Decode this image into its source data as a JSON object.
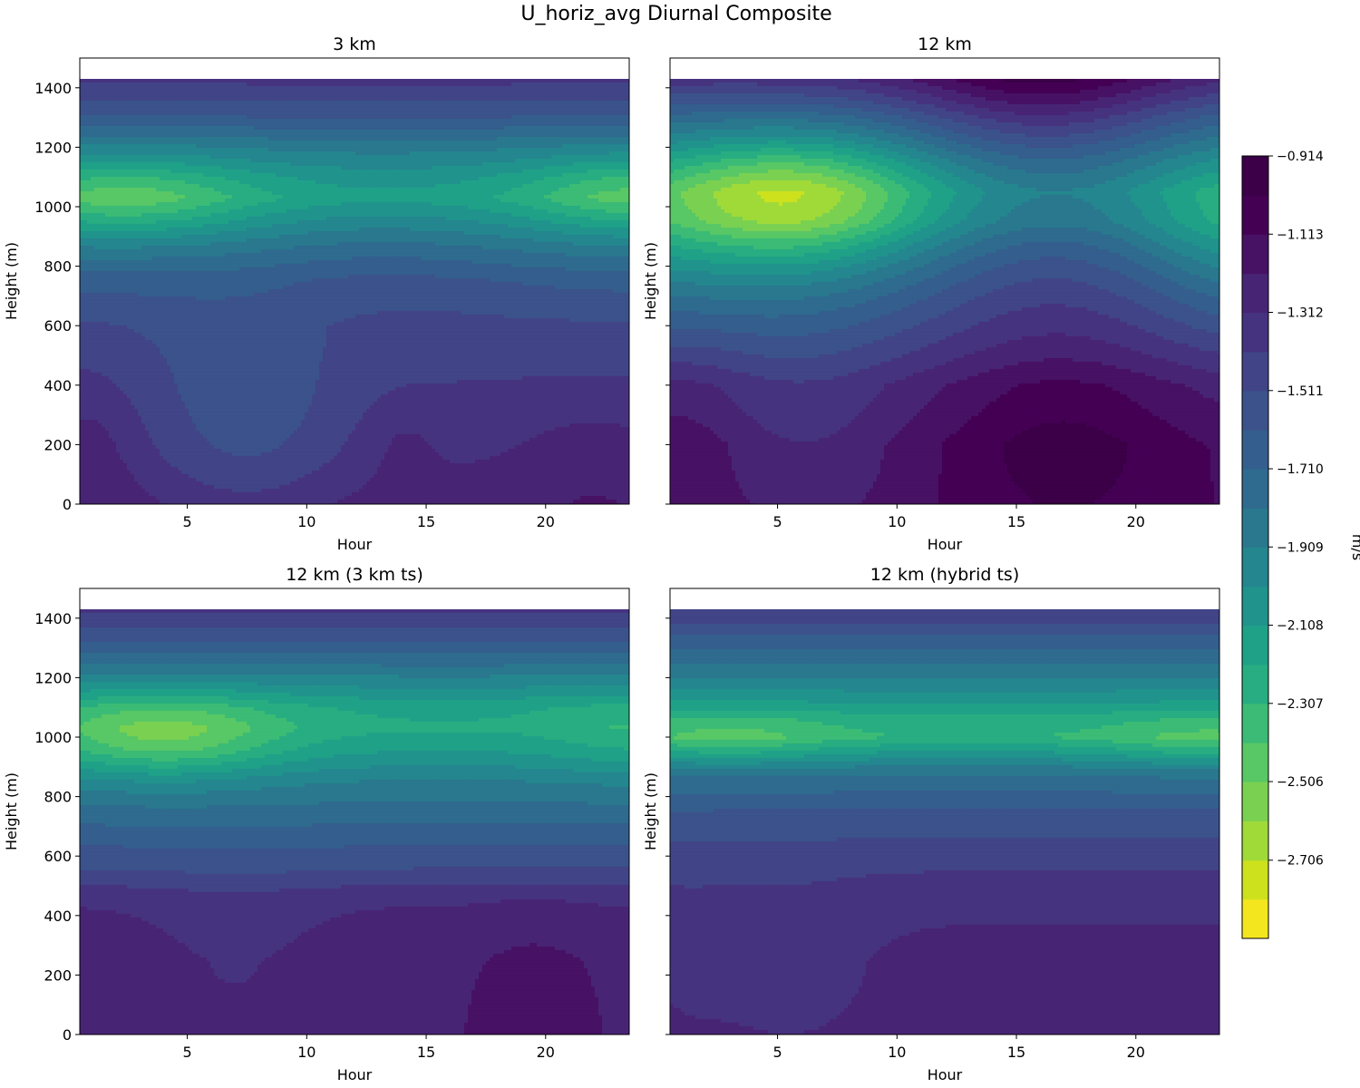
{
  "title": "U_horiz_avg Diurnal Composite",
  "colorbar": {
    "label": "m/s",
    "tick_labels": [
      "−0.914",
      "−1.113",
      "−1.312",
      "−1.511",
      "−1.710",
      "−1.909",
      "−2.108",
      "−2.307",
      "−2.506",
      "−2.706"
    ],
    "levels": [
      -2.905,
      -2.805,
      -2.706,
      -2.606,
      -2.506,
      -2.407,
      -2.307,
      -2.208,
      -2.108,
      -2.009,
      -1.909,
      -1.81,
      -1.71,
      -1.611,
      -1.511,
      -1.412,
      -1.312,
      -1.213,
      -1.113,
      -1.014,
      -0.914
    ],
    "colors": [
      "#f4e61e",
      "#cde11d",
      "#a0da39",
      "#7ad151",
      "#58c765",
      "#3bbb75",
      "#27ad81",
      "#1fa188",
      "#20938c",
      "#24868e",
      "#29788e",
      "#2e6b8e",
      "#345e8d",
      "#3b528b",
      "#414487",
      "#46337f",
      "#482475",
      "#471164",
      "#440154",
      "#3b0047"
    ]
  },
  "chart_data": [
    {
      "type": "contourf",
      "title": "3 km",
      "xlabel": "Hour",
      "ylabel": "Height (m)",
      "xlim": [
        0.5,
        23.5
      ],
      "ylim": [
        0,
        1500
      ],
      "xticks": [
        5,
        10,
        15,
        20
      ],
      "yticks": [
        0,
        200,
        400,
        600,
        800,
        1000,
        1200,
        1400
      ],
      "data_ymax": 1430,
      "field": {
        "base": [
          [
            0,
            -1.25
          ],
          [
            150,
            -1.32
          ],
          [
            300,
            -1.37
          ],
          [
            450,
            -1.43
          ],
          [
            600,
            -1.5
          ],
          [
            750,
            -1.65
          ],
          [
            850,
            -1.84
          ],
          [
            950,
            -2.06
          ],
          [
            1030,
            -2.22
          ],
          [
            1100,
            -2.12
          ],
          [
            1200,
            -1.9
          ],
          [
            1300,
            -1.62
          ],
          [
            1430,
            -1.38
          ]
        ],
        "bumps": [
          {
            "x": 2.5,
            "y": 1030,
            "sx": 3.5,
            "sy": 90,
            "a": -0.26
          },
          {
            "x": 23.5,
            "y": 1040,
            "sx": 3.0,
            "sy": 90,
            "a": -0.24
          },
          {
            "x": 7.5,
            "y": 250,
            "sx": 3.0,
            "sy": 250,
            "a": -0.2
          },
          {
            "x": 1.0,
            "y": 200,
            "sx": 1.3,
            "sy": 180,
            "a": 0.08
          },
          {
            "x": 22.0,
            "y": 150,
            "sx": 2.2,
            "sy": 150,
            "a": 0.07
          },
          {
            "x": 14.0,
            "y": 200,
            "sx": 1.0,
            "sy": 100,
            "a": 0.06
          },
          {
            "x": 13.0,
            "y": 900,
            "sx": 4.5,
            "sy": 200,
            "a": 0.1
          }
        ]
      }
    },
    {
      "type": "contourf",
      "title": "12 km",
      "xlabel": "Hour",
      "ylabel": "Height (m)",
      "xlim": [
        0.5,
        23.5
      ],
      "ylim": [
        0,
        1500
      ],
      "xticks": [
        5,
        10,
        15,
        20
      ],
      "yticks": [
        0,
        200,
        400,
        600,
        800,
        1000,
        1200,
        1400
      ],
      "data_ymax": 1430,
      "field": {
        "base": [
          [
            0,
            -1.14
          ],
          [
            200,
            -1.16
          ],
          [
            400,
            -1.3
          ],
          [
            550,
            -1.55
          ],
          [
            700,
            -1.8
          ],
          [
            850,
            -2.05
          ],
          [
            950,
            -2.22
          ],
          [
            1050,
            -2.25
          ],
          [
            1150,
            -2.05
          ],
          [
            1300,
            -1.7
          ],
          [
            1430,
            -1.35
          ]
        ],
        "bumps": [
          {
            "x": 5.5,
            "y": 1030,
            "sx": 4.0,
            "sy": 150,
            "a": -0.5
          },
          {
            "x": 23.5,
            "y": 950,
            "sx": 2.5,
            "sy": 180,
            "a": -0.15
          },
          {
            "x": 16.5,
            "y": 850,
            "sx": 5.0,
            "sy": 250,
            "a": 0.4
          },
          {
            "x": 16.0,
            "y": 1430,
            "sx": 4.0,
            "sy": 200,
            "a": 0.35
          },
          {
            "x": 17.0,
            "y": 200,
            "sx": 3.5,
            "sy": 250,
            "a": 0.18
          },
          {
            "x": 6.0,
            "y": 200,
            "sx": 3.0,
            "sy": 250,
            "a": -0.15
          },
          {
            "x": 1.5,
            "y": 250,
            "sx": 1.8,
            "sy": 250,
            "a": 0.05
          }
        ]
      }
    },
    {
      "type": "contourf",
      "title": "12 km (3 km ts)",
      "xlabel": "Hour",
      "ylabel": "Height (m)",
      "xlim": [
        0.5,
        23.5
      ],
      "ylim": [
        0,
        1500
      ],
      "xticks": [
        5,
        10,
        15,
        20
      ],
      "yticks": [
        0,
        200,
        400,
        600,
        800,
        1000,
        1200,
        1400
      ],
      "data_ymax": 1430,
      "field": {
        "base": [
          [
            0,
            -1.22
          ],
          [
            250,
            -1.24
          ],
          [
            450,
            -1.32
          ],
          [
            550,
            -1.5
          ],
          [
            700,
            -1.7
          ],
          [
            850,
            -1.9
          ],
          [
            950,
            -2.1
          ],
          [
            1030,
            -2.22
          ],
          [
            1100,
            -2.18
          ],
          [
            1200,
            -1.92
          ],
          [
            1300,
            -1.65
          ],
          [
            1430,
            -1.38
          ]
        ],
        "bumps": [
          {
            "x": 4.0,
            "y": 1000,
            "sx": 3.5,
            "sy": 100,
            "a": -0.35
          },
          {
            "x": 23.5,
            "y": 1000,
            "sx": 2.5,
            "sy": 100,
            "a": -0.1
          },
          {
            "x": 7.0,
            "y": 220,
            "sx": 2.5,
            "sy": 220,
            "a": -0.08
          },
          {
            "x": 19.5,
            "y": 150,
            "sx": 1.5,
            "sy": 150,
            "a": 0.08
          }
        ]
      }
    },
    {
      "type": "contourf",
      "title": "12 km (hybrid ts)",
      "xlabel": "Hour",
      "ylabel": "Height (m)",
      "xlim": [
        0.5,
        23.5
      ],
      "ylim": [
        0,
        1500
      ],
      "xticks": [
        5,
        10,
        15,
        20
      ],
      "yticks": [
        0,
        200,
        400,
        600,
        800,
        1000,
        1200,
        1400
      ],
      "data_ymax": 1430,
      "field": {
        "base": [
          [
            0,
            -1.25
          ],
          [
            250,
            -1.27
          ],
          [
            450,
            -1.34
          ],
          [
            600,
            -1.45
          ],
          [
            750,
            -1.6
          ],
          [
            880,
            -1.82
          ],
          [
            950,
            -2.1
          ],
          [
            1000,
            -2.3
          ],
          [
            1060,
            -2.25
          ],
          [
            1150,
            -2.02
          ],
          [
            1300,
            -1.7
          ],
          [
            1430,
            -1.4
          ]
        ],
        "bumps": [
          {
            "x": 3.0,
            "y": 990,
            "sx": 3.0,
            "sy": 60,
            "a": -0.16
          },
          {
            "x": 23.0,
            "y": 980,
            "sx": 3.0,
            "sy": 60,
            "a": -0.16
          },
          {
            "x": 5.5,
            "y": 200,
            "sx": 2.5,
            "sy": 200,
            "a": -0.1
          },
          {
            "x": 1.0,
            "y": 250,
            "sx": 1.5,
            "sy": 250,
            "a": -0.05
          }
        ]
      }
    }
  ]
}
